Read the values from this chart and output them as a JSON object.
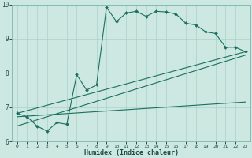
{
  "title": "",
  "xlabel": "Humidex (Indice chaleur)",
  "xlim": [
    -0.5,
    23.5
  ],
  "ylim": [
    6,
    10
  ],
  "xticks": [
    0,
    1,
    2,
    3,
    4,
    5,
    6,
    7,
    8,
    9,
    10,
    11,
    12,
    13,
    14,
    15,
    16,
    17,
    18,
    19,
    20,
    21,
    22,
    23
  ],
  "yticks": [
    6,
    7,
    8,
    9,
    10
  ],
  "bg_color": "#cce8e0",
  "line_color": "#1a7060",
  "grid_color": "#aad0c8",
  "series1_x": [
    0,
    1,
    2,
    3,
    4,
    5,
    6,
    7,
    8,
    9,
    10,
    11,
    12,
    13,
    14,
    15,
    16,
    17,
    18,
    19,
    20,
    21,
    22,
    23
  ],
  "series1_y": [
    6.82,
    6.72,
    6.45,
    6.3,
    6.55,
    6.5,
    7.95,
    7.5,
    7.65,
    9.92,
    9.5,
    9.75,
    9.8,
    9.65,
    9.8,
    9.78,
    9.72,
    9.45,
    9.4,
    9.2,
    9.15,
    8.75,
    8.75,
    8.62
  ],
  "series2_x": [
    0,
    23
  ],
  "series2_y": [
    6.82,
    8.62
  ],
  "series3_x": [
    0,
    23
  ],
  "series3_y": [
    6.72,
    7.15
  ],
  "series4_x": [
    0,
    23
  ],
  "series4_y": [
    6.45,
    8.52
  ]
}
